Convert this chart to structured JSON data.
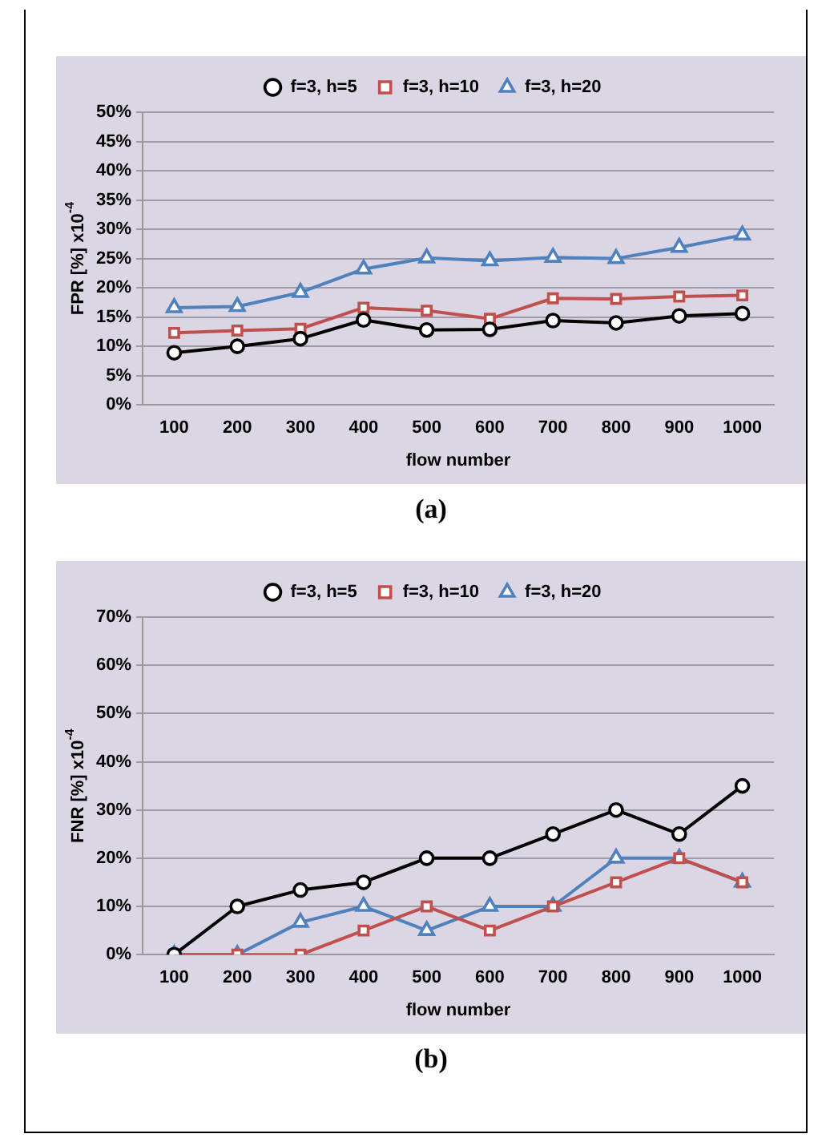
{
  "chart_data": [
    {
      "type": "line",
      "xlabel": "flow number",
      "ylabel": "FPR [%] x10$^{-4}$",
      "annotations": [
        "(a)"
      ],
      "categories": [
        "100",
        "200",
        "300",
        "400",
        "500",
        "600",
        "700",
        "800",
        "900",
        "1000"
      ],
      "series": [
        {
          "name": "f=3, h=5",
          "color": "#000000",
          "marker": "circle",
          "values": [
            8.9,
            10.0,
            11.3,
            14.5,
            12.8,
            12.9,
            14.4,
            14.0,
            15.2,
            15.6
          ]
        },
        {
          "name": "f=3, h=10",
          "color": "#c0504d",
          "marker": "square",
          "values": [
            12.3,
            12.7,
            13.0,
            16.6,
            16.1,
            14.7,
            18.2,
            18.1,
            18.5,
            18.7
          ]
        },
        {
          "name": "f=3, h=20",
          "color": "#4f81bd",
          "marker": "triangle",
          "values": [
            16.6,
            16.8,
            19.2,
            23.2,
            25.1,
            24.6,
            25.2,
            25.0,
            26.9,
            29.0
          ]
        }
      ],
      "ylim": [
        0,
        50
      ],
      "yticks": [
        {
          "value": 0,
          "label": "0%"
        },
        {
          "value": 5,
          "label": "5%"
        },
        {
          "value": 10,
          "label": "10%"
        },
        {
          "value": 15,
          "label": "15%"
        },
        {
          "value": 20,
          "label": "20%"
        },
        {
          "value": 25,
          "label": "25%"
        },
        {
          "value": 30,
          "label": "30%"
        },
        {
          "value": 35,
          "label": "35%"
        },
        {
          "value": 40,
          "label": "40%"
        },
        {
          "value": 45,
          "label": "45%"
        },
        {
          "value": 50,
          "label": "50%"
        }
      ],
      "grid": "y",
      "legend": "top"
    },
    {
      "type": "line",
      "xlabel": "flow number",
      "ylabel": "FNR [%] x10$^{-4}$",
      "annotations": [
        "(b)"
      ],
      "categories": [
        "100",
        "200",
        "300",
        "400",
        "500",
        "600",
        "700",
        "800",
        "900",
        "1000"
      ],
      "series": [
        {
          "name": "f=3, h=5",
          "color": "#000000",
          "marker": "circle",
          "values": [
            0,
            10,
            13.4,
            15,
            20,
            20,
            25,
            30,
            25,
            35
          ]
        },
        {
          "name": "f=3, h=10",
          "color": "#c0504d",
          "marker": "square",
          "values": [
            0,
            0,
            0,
            5,
            10,
            5,
            10,
            15,
            20,
            15
          ]
        },
        {
          "name": "f=3, h=20",
          "color": "#4f81bd",
          "marker": "triangle",
          "values": [
            0,
            0,
            6.7,
            10,
            5,
            10,
            10,
            20,
            20,
            15
          ]
        }
      ],
      "ylim": [
        0,
        70
      ],
      "yticks": [
        {
          "value": 0,
          "label": "0%"
        },
        {
          "value": 10,
          "label": "10%"
        },
        {
          "value": 20,
          "label": "20%"
        },
        {
          "value": 30,
          "label": "30%"
        },
        {
          "value": 40,
          "label": "40%"
        },
        {
          "value": 50,
          "label": "50%"
        },
        {
          "value": 60,
          "label": "60%"
        },
        {
          "value": 70,
          "label": "70%"
        }
      ],
      "grid": "y",
      "legend": "top"
    }
  ]
}
